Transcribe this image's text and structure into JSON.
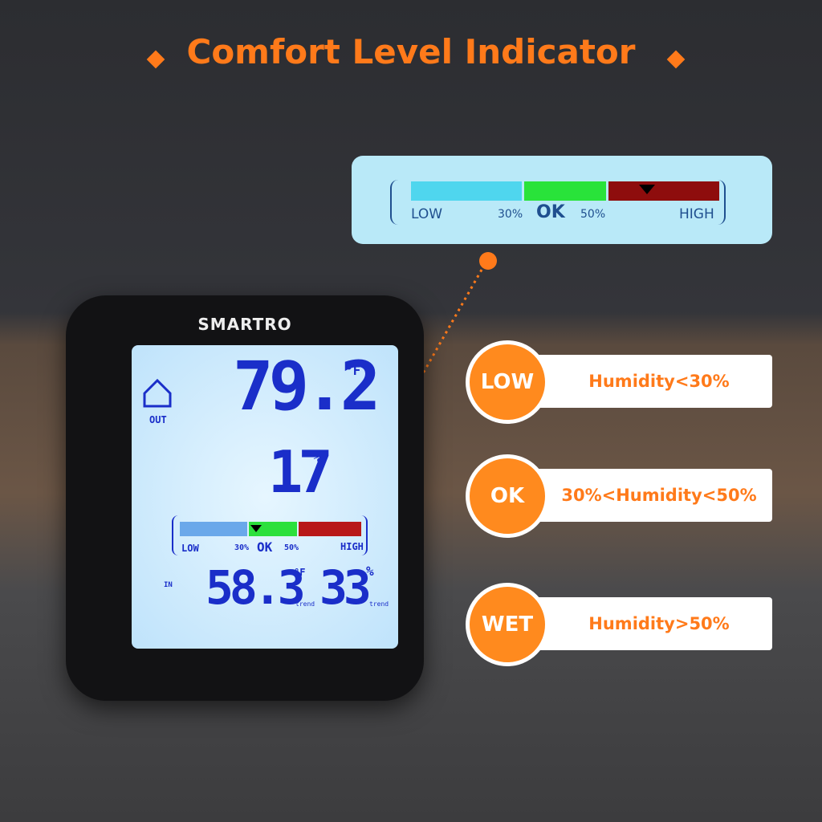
{
  "title": "Comfort Level Indicator",
  "indicator_bar": {
    "low": "LOW",
    "low_threshold": "30%",
    "ok": "OK",
    "high_threshold": "50%",
    "high": "HIGH"
  },
  "device": {
    "brand": "SMARTRO",
    "outdoor": {
      "label": "OUT",
      "temperature": "79.2",
      "temperature_unit": "°F",
      "humidity": "17",
      "humidity_unit": "%"
    },
    "comfort_bar": {
      "low": "LOW",
      "low_threshold": "30%",
      "ok": "OK",
      "high_threshold": "50%",
      "high": "HIGH"
    },
    "indoor": {
      "label": "IN",
      "temperature": "58.3",
      "temperature_unit": "°F",
      "temperature_trend": "trend",
      "humidity": "33",
      "humidity_unit": "%",
      "humidity_trend": "trend"
    }
  },
  "levels": [
    {
      "label": "LOW",
      "description": "Humidity<30%"
    },
    {
      "label": "OK",
      "description": "30%<Humidity<50%"
    },
    {
      "label": "WET",
      "description": "Humidity>50%"
    }
  ]
}
